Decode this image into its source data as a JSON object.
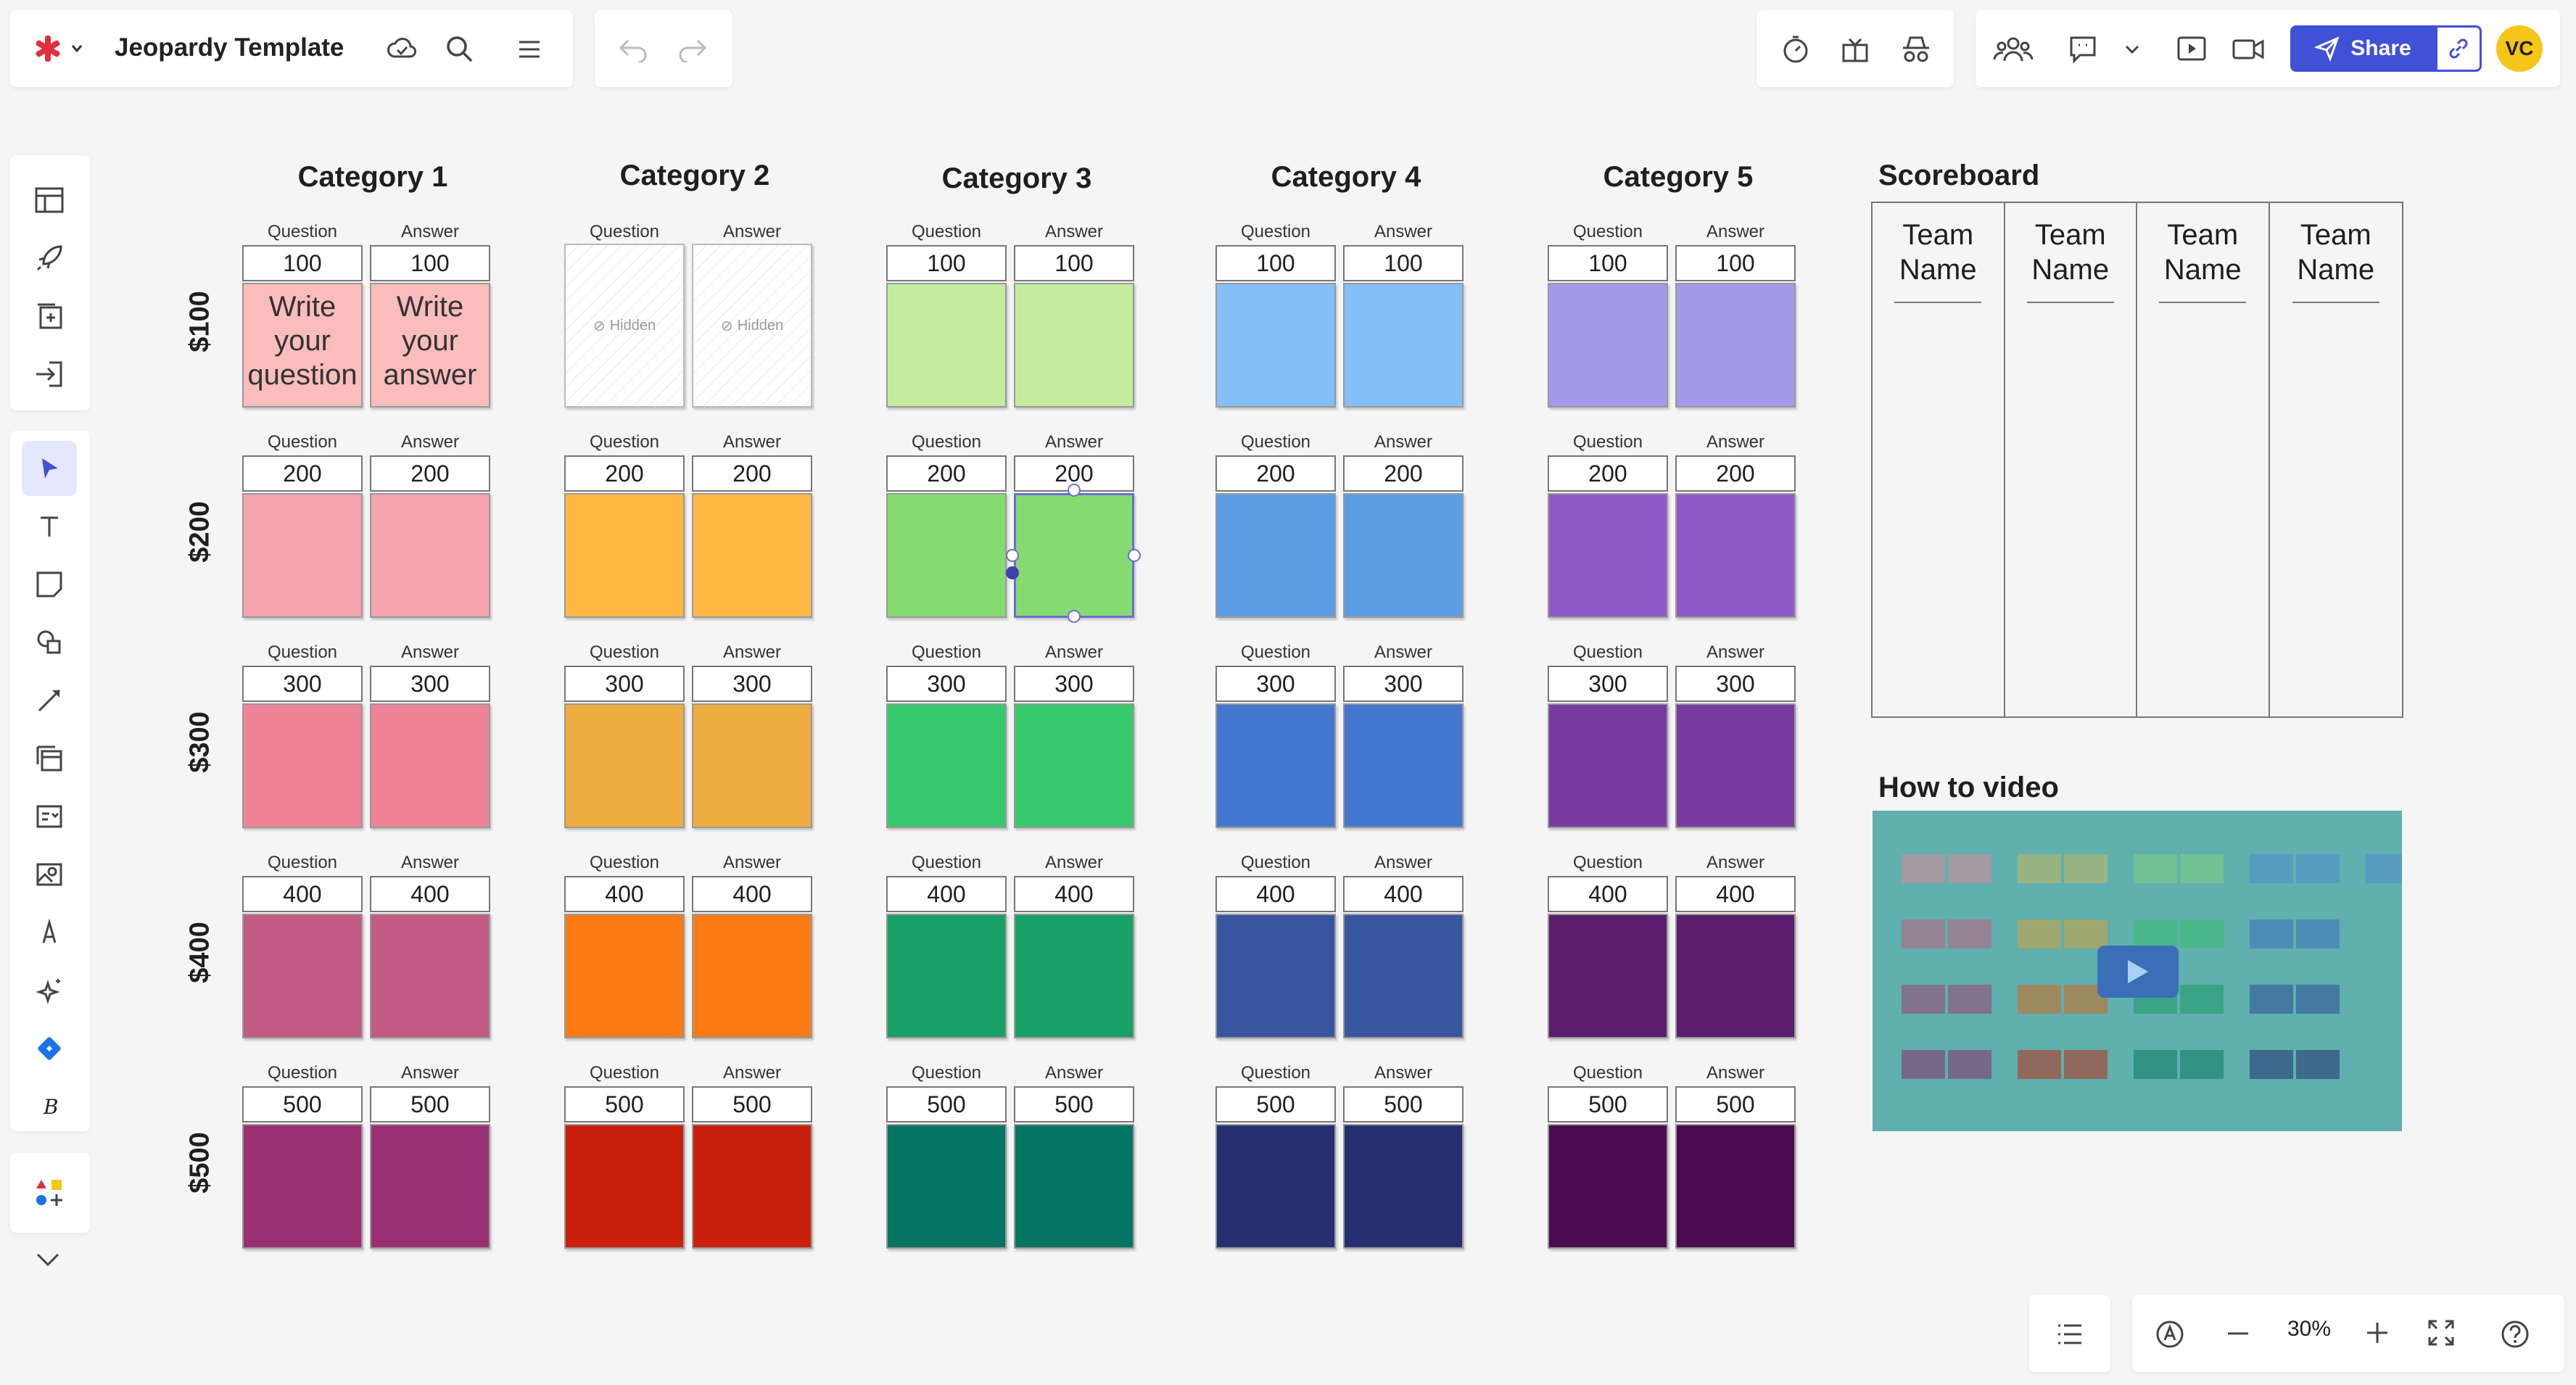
{
  "app": {
    "title": "Jeopardy Template"
  },
  "toolbar": {
    "share_label": "Share",
    "avatar_initials": "VC",
    "zoom": "30%"
  },
  "colors": {
    "accent": "#3f51d6",
    "avatar": "#f5c518"
  },
  "board": {
    "qa_labels": {
      "question": "Question",
      "answer": "Answer"
    },
    "rows": [
      "$100",
      "$200",
      "$300",
      "$400",
      "$500"
    ],
    "values": [
      "100",
      "200",
      "300",
      "400",
      "500"
    ],
    "categories": [
      {
        "title": "Category 1",
        "colors": [
          "#fbbcbc",
          "#f6a4b0",
          "#ef8499",
          "#c25a83",
          "#9a2f72"
        ]
      },
      {
        "title": "Category 2",
        "colors": [
          "hidden",
          "#ffb942",
          "#edad3f",
          "#fb7a14",
          "#c9200c"
        ]
      },
      {
        "title": "Category 3",
        "colors": [
          "#c4ec9f",
          "#85db70",
          "#37c96e",
          "#19a067",
          "#047463"
        ]
      },
      {
        "title": "Category 4",
        "colors": [
          "#84bff7",
          "#5c9ee3",
          "#4376ce",
          "#38559f",
          "#263071"
        ]
      },
      {
        "title": "Category 5",
        "colors": [
          "#a29be9",
          "#8f5ac8",
          "#773aa1",
          "#5b1d6d",
          "#4b0b50"
        ]
      }
    ],
    "first_card": {
      "question": "Write your question",
      "answer": "Write your answer"
    },
    "hidden_label": "Hidden"
  },
  "scoreboard": {
    "title": "Scoreboard",
    "teams": [
      "Team Name",
      "Team Name",
      "Team Name",
      "Team Name"
    ]
  },
  "video": {
    "title": "How to video"
  }
}
